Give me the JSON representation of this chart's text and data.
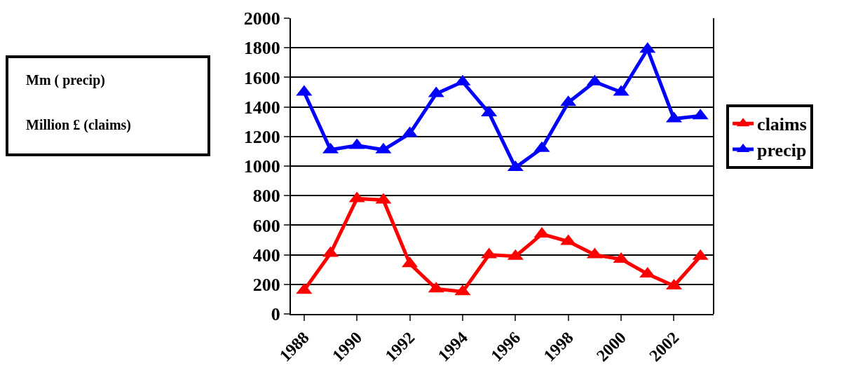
{
  "chart_data": {
    "type": "line",
    "categories": [
      "1988",
      null,
      "1990",
      null,
      "1992",
      null,
      "1994",
      null,
      "1996",
      null,
      "1998",
      null,
      "2000",
      null,
      "2002",
      null
    ],
    "series": [
      {
        "name": "claims",
        "color": "#ff0000",
        "values": [
          160,
          410,
          780,
          770,
          340,
          170,
          150,
          400,
          390,
          540,
          490,
          400,
          370,
          270,
          190,
          390
        ]
      },
      {
        "name": "precip",
        "color": "#0000ff",
        "values": [
          1500,
          1110,
          1140,
          1110,
          1220,
          1490,
          1570,
          1360,
          990,
          1120,
          1430,
          1570,
          1500,
          1790,
          1320,
          1340
        ]
      }
    ],
    "ylim": [
      0,
      2000
    ],
    "yticks": [
      0,
      200,
      400,
      600,
      800,
      1000,
      1200,
      1400,
      1600,
      1800,
      2000
    ],
    "grid": "y",
    "legend": "right",
    "marker": "triangle",
    "line_style": "solid",
    "annotations": [
      "Mm ( precip)",
      "Million £ (claims)"
    ]
  }
}
